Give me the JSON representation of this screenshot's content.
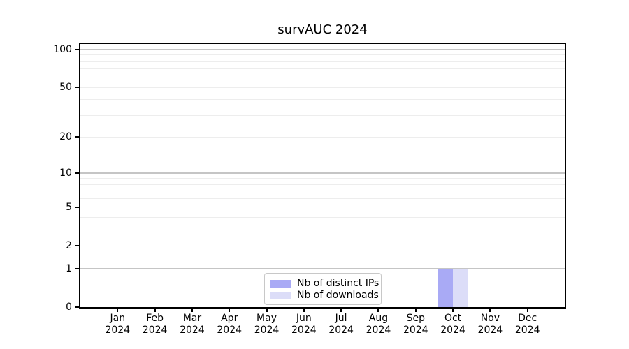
{
  "figure": {
    "title": "survAUC 2024"
  },
  "chart_data": {
    "type": "bar",
    "title": "survAUC 2024",
    "yscale": "log1p",
    "ylim": [
      0,
      110
    ],
    "yticks": [
      0,
      1,
      2,
      5,
      10,
      20,
      50,
      100
    ],
    "gridlines": {
      "major": [
        1,
        10,
        100
      ],
      "minor": [
        2,
        3,
        4,
        5,
        6,
        7,
        8,
        9,
        20,
        30,
        40,
        50,
        60,
        70,
        80,
        90
      ]
    },
    "categories": [
      {
        "month": "Jan",
        "year": "2024"
      },
      {
        "month": "Feb",
        "year": "2024"
      },
      {
        "month": "Mar",
        "year": "2024"
      },
      {
        "month": "Apr",
        "year": "2024"
      },
      {
        "month": "May",
        "year": "2024"
      },
      {
        "month": "Jun",
        "year": "2024"
      },
      {
        "month": "Jul",
        "year": "2024"
      },
      {
        "month": "Aug",
        "year": "2024"
      },
      {
        "month": "Sep",
        "year": "2024"
      },
      {
        "month": "Oct",
        "year": "2024"
      },
      {
        "month": "Nov",
        "year": "2024"
      },
      {
        "month": "Dec",
        "year": "2024"
      }
    ],
    "series": [
      {
        "name": "Nb of distinct IPs",
        "color": "#a9aaf5",
        "values": [
          0,
          0,
          0,
          0,
          0,
          0,
          0,
          0,
          0,
          1,
          0,
          0
        ]
      },
      {
        "name": "Nb of downloads",
        "color": "#dcddf8",
        "values": [
          0,
          0,
          0,
          0,
          0,
          0,
          0,
          0,
          0,
          1,
          0,
          0
        ]
      }
    ],
    "legend_position": "bottom-center",
    "grid": true
  },
  "colors": {
    "background": "#ffffff",
    "axis": "#000000",
    "grid_major": "#c5c5c5",
    "grid_minor": "#ededed",
    "legend_border": "#c8c8c8",
    "text": "#000000"
  }
}
